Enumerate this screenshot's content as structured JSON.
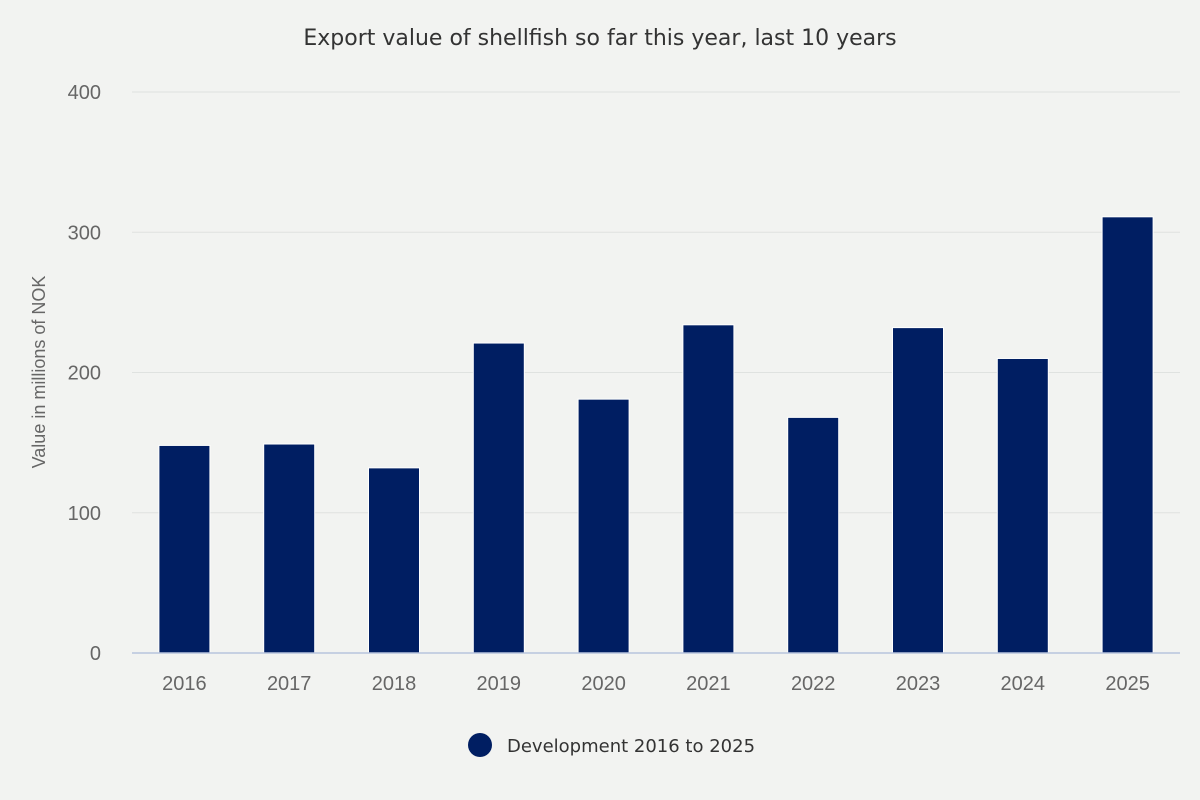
{
  "chart_data": {
    "type": "bar",
    "title": "Export value of shellfish so far this year, last 10 years",
    "xlabel": "",
    "ylabel": "Value in millions of NOK",
    "categories": [
      "2016",
      "2017",
      "2018",
      "2019",
      "2020",
      "2021",
      "2022",
      "2023",
      "2024",
      "2025"
    ],
    "series": [
      {
        "name": "Development 2016 to 2025",
        "values": [
          148,
          149,
          132,
          221,
          181,
          234,
          168,
          232,
          210,
          311
        ],
        "color": "#001e62"
      }
    ],
    "ylim": [
      0,
      400
    ],
    "yticks": [
      "0",
      "100",
      "200",
      "300",
      "400"
    ],
    "grid": true,
    "legend_position": "bottom-center"
  }
}
